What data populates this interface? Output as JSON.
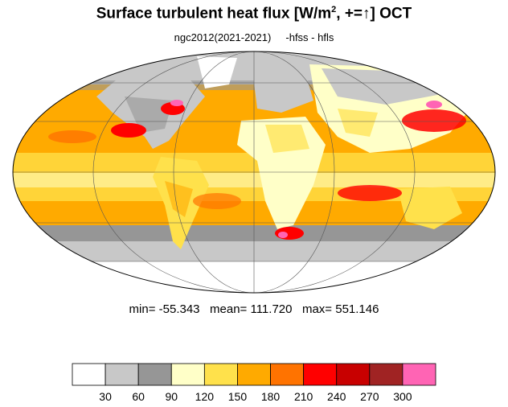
{
  "title": {
    "main": "Surface turbulent heat flux [W/m",
    "sup": "2",
    "rest": ", +=",
    "arrow": "↑",
    "tail": "]  OCT"
  },
  "subtitle": "ngc2012(2021-2021)     -hfss - hfls",
  "stats_line": "min= -55.343   mean= 111.720   max= 551.146",
  "colorbar": {
    "colors": [
      "#ffffff",
      "#c8c8c8",
      "#969696",
      "#ffffc8",
      "#ffe14b",
      "#ffaa00",
      "#ff7300",
      "#ff0000",
      "#c80000",
      "#a02323",
      "#ff64b4"
    ],
    "tick_labels": [
      "30",
      "60",
      "90",
      "120",
      "150",
      "180",
      "210",
      "240",
      "270",
      "300"
    ]
  },
  "map": {
    "projection": "mollweide",
    "ocean_base_color": "#ffaa00"
  }
}
